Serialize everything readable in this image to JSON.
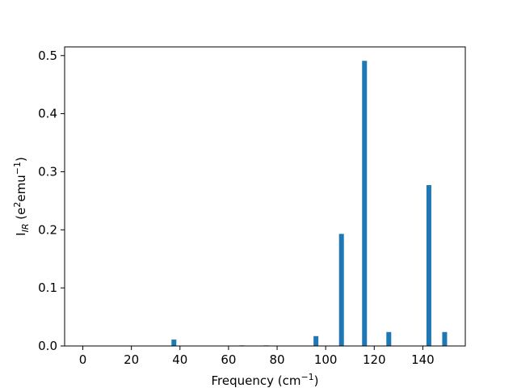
{
  "chart_data": {
    "type": "bar",
    "title": "",
    "xlabel": "Frequency (cm⁻¹)",
    "ylabel": "I_IR (e²emu⁻¹)",
    "ylabel_parts": {
      "base": "I",
      "sub": "IR",
      "unit_open": " (e",
      "sup1": "2",
      "mid": "emu",
      "sup2": "−1",
      "unit_close": ")"
    },
    "xlabel_parts": {
      "base": "Frequency (cm",
      "sup": "−1",
      "close": ")"
    },
    "xlim": [
      -7.5,
      157.5
    ],
    "ylim": [
      0,
      0.515
    ],
    "x_ticks": [
      0,
      20,
      40,
      60,
      80,
      100,
      120,
      140
    ],
    "y_ticks": [
      0.0,
      0.1,
      0.2,
      0.3,
      0.4,
      0.5
    ],
    "y_tick_labels": [
      "0.0",
      "0.1",
      "0.2",
      "0.3",
      "0.4",
      "0.5"
    ],
    "x_tick_labels": [
      "0",
      "20",
      "40",
      "60",
      "80",
      "100",
      "120",
      "140"
    ],
    "bar_width": 2,
    "bar_color": "#1f77b4",
    "grid": false,
    "series": [
      {
        "x": [
          37.5,
          65.5,
          75.5,
          96,
          106.5,
          116,
          126,
          142.5,
          149
        ],
        "values": [
          0.011,
          0.001,
          0.001,
          0.017,
          0.193,
          0.491,
          0.024,
          0.277,
          0.024
        ]
      }
    ]
  }
}
